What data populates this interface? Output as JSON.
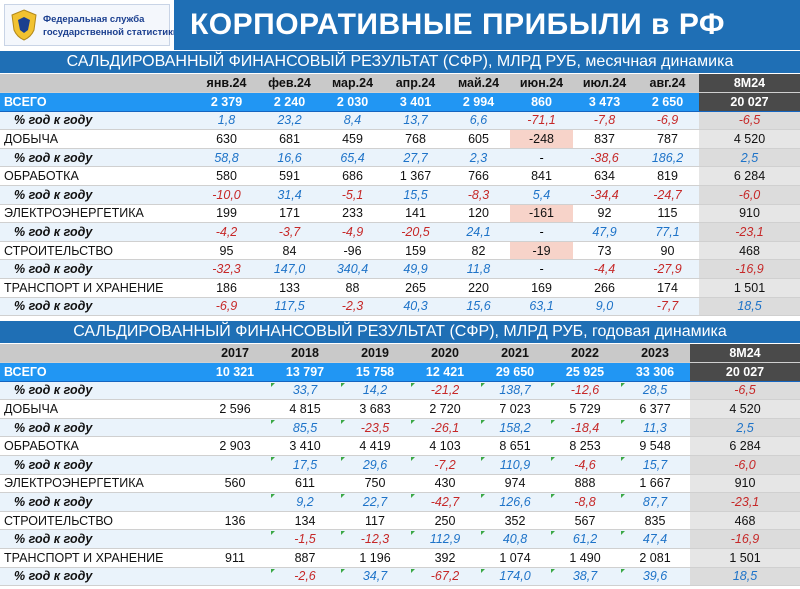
{
  "header": {
    "logo_line1": "Федеральная служба",
    "logo_line2": "государственной статистики",
    "title": "КОРПОРАТИВНЫЕ ПРИБЫЛИ в РФ"
  },
  "monthly": {
    "title": "САЛЬДИРОВАННЫЙ ФИНАНСОВЫЙ РЕЗУЛЬТАТ (СФР), МЛРД РУБ, месячная динамика",
    "columns": [
      "янв.24",
      "фев.24",
      "мар.24",
      "апр.24",
      "май.24",
      "июн.24",
      "июл.24",
      "авг.24",
      "8М24"
    ],
    "rows": [
      {
        "type": "tot",
        "label": "ВСЕГО",
        "values": [
          "2 379",
          "2 240",
          "2 030",
          "3 401",
          "2 994",
          "860",
          "3 473",
          "2 650",
          "20 027"
        ]
      },
      {
        "type": "pct",
        "label": "% год к году",
        "values": [
          "1,8",
          "23,2",
          "8,4",
          "13,7",
          "6,6",
          "-71,1",
          "-7,8",
          "-6,9",
          "-6,5"
        ]
      },
      {
        "type": "cat",
        "label": "ДОБЫЧА",
        "values": [
          "630",
          "681",
          "459",
          "768",
          "605",
          "-248",
          "837",
          "787",
          "4 520"
        ]
      },
      {
        "type": "pct",
        "label": "% год к году",
        "values": [
          "58,8",
          "16,6",
          "65,4",
          "27,7",
          "2,3",
          "-",
          "-38,6",
          "186,2",
          "2,5"
        ]
      },
      {
        "type": "cat",
        "label": "ОБРАБОТКА",
        "values": [
          "580",
          "591",
          "686",
          "1 367",
          "766",
          "841",
          "634",
          "819",
          "6 284"
        ]
      },
      {
        "type": "pct",
        "label": "% год к году",
        "values": [
          "-10,0",
          "31,4",
          "-5,1",
          "15,5",
          "-8,3",
          "5,4",
          "-34,4",
          "-24,7",
          "-6,0"
        ]
      },
      {
        "type": "cat",
        "label": "ЭЛЕКТРОЭНЕРГЕТИКА",
        "values": [
          "199",
          "171",
          "233",
          "141",
          "120",
          "-161",
          "92",
          "115",
          "910"
        ]
      },
      {
        "type": "pct",
        "label": "% год к году",
        "values": [
          "-4,2",
          "-3,7",
          "-4,9",
          "-20,5",
          "24,1",
          "-",
          "47,9",
          "77,1",
          "-23,1"
        ]
      },
      {
        "type": "cat",
        "label": "СТРОИТЕЛЬСТВО",
        "values": [
          "95",
          "84",
          "-96",
          "159",
          "82",
          "-19",
          "73",
          "90",
          "468"
        ]
      },
      {
        "type": "pct",
        "label": "% год к году",
        "values": [
          "-32,3",
          "147,0",
          "340,4",
          "49,9",
          "11,8",
          "-",
          "-4,4",
          "-27,9",
          "-16,9"
        ]
      },
      {
        "type": "cat",
        "label": "ТРАНСПОРТ И ХРАНЕНИЕ",
        "values": [
          "186",
          "133",
          "88",
          "265",
          "220",
          "169",
          "266",
          "174",
          "1 501"
        ]
      },
      {
        "type": "pct",
        "label": "% год к году",
        "values": [
          "-6,9",
          "117,5",
          "-2,3",
          "40,3",
          "15,6",
          "63,1",
          "9,0",
          "-7,7",
          "18,5"
        ]
      }
    ]
  },
  "yearly": {
    "title": "САЛЬДИРОВАННЫЙ ФИНАНСОВЫЙ РЕЗУЛЬТАТ (СФР), МЛРД РУБ, годовая динамика",
    "columns": [
      "2017",
      "2018",
      "2019",
      "2020",
      "2021",
      "2022",
      "2023",
      "8М24"
    ],
    "rows": [
      {
        "type": "tot",
        "label": "ВСЕГО",
        "values": [
          "10 321",
          "13 797",
          "15 758",
          "12 421",
          "29 650",
          "25 925",
          "33 306",
          "20 027"
        ]
      },
      {
        "type": "pct",
        "label": "% год к году",
        "values": [
          "",
          "33,7",
          "14,2",
          "-21,2",
          "138,7",
          "-12,6",
          "28,5",
          "-6,5"
        ]
      },
      {
        "type": "cat",
        "label": "ДОБЫЧА",
        "values": [
          "2 596",
          "4 815",
          "3 683",
          "2 720",
          "7 023",
          "5 729",
          "6 377",
          "4 520"
        ]
      },
      {
        "type": "pct",
        "label": "% год к году",
        "values": [
          "",
          "85,5",
          "-23,5",
          "-26,1",
          "158,2",
          "-18,4",
          "11,3",
          "2,5"
        ]
      },
      {
        "type": "cat",
        "label": "ОБРАБОТКА",
        "values": [
          "2 903",
          "3 410",
          "4 419",
          "4 103",
          "8 651",
          "8 253",
          "9 548",
          "6 284"
        ]
      },
      {
        "type": "pct",
        "label": "% год к году",
        "values": [
          "",
          "17,5",
          "29,6",
          "-7,2",
          "110,9",
          "-4,6",
          "15,7",
          "-6,0"
        ]
      },
      {
        "type": "cat",
        "label": "ЭЛЕКТРОЭНЕРГЕТИКА",
        "values": [
          "560",
          "611",
          "750",
          "430",
          "974",
          "888",
          "1 667",
          "910"
        ]
      },
      {
        "type": "pct",
        "label": "% год к году",
        "values": [
          "",
          "9,2",
          "22,7",
          "-42,7",
          "126,6",
          "-8,8",
          "87,7",
          "-23,1"
        ]
      },
      {
        "type": "cat",
        "label": "СТРОИТЕЛЬСТВО",
        "values": [
          "136",
          "134",
          "117",
          "250",
          "352",
          "567",
          "835",
          "468"
        ]
      },
      {
        "type": "pct",
        "label": "% год к году",
        "values": [
          "",
          "-1,5",
          "-12,3",
          "112,9",
          "40,8",
          "61,2",
          "47,4",
          "-16,9"
        ]
      },
      {
        "type": "cat",
        "label": "ТРАНСПОРТ И ХРАНЕНИЕ",
        "values": [
          "911",
          "887",
          "1 196",
          "392",
          "1 074",
          "1 490",
          "2 081",
          "1 501"
        ]
      },
      {
        "type": "pct",
        "label": "% год к году",
        "values": [
          "",
          "-2,6",
          "34,7",
          "-67,2",
          "174,0",
          "38,7",
          "39,6",
          "18,5"
        ]
      }
    ]
  },
  "colors": {
    "banner": "#1f6fb5",
    "total_row": "#2196f3",
    "last_col": "#4a4a4a",
    "positive": "#1e73c8",
    "negative": "#c62828",
    "highlight": "#f7d3c9"
  }
}
